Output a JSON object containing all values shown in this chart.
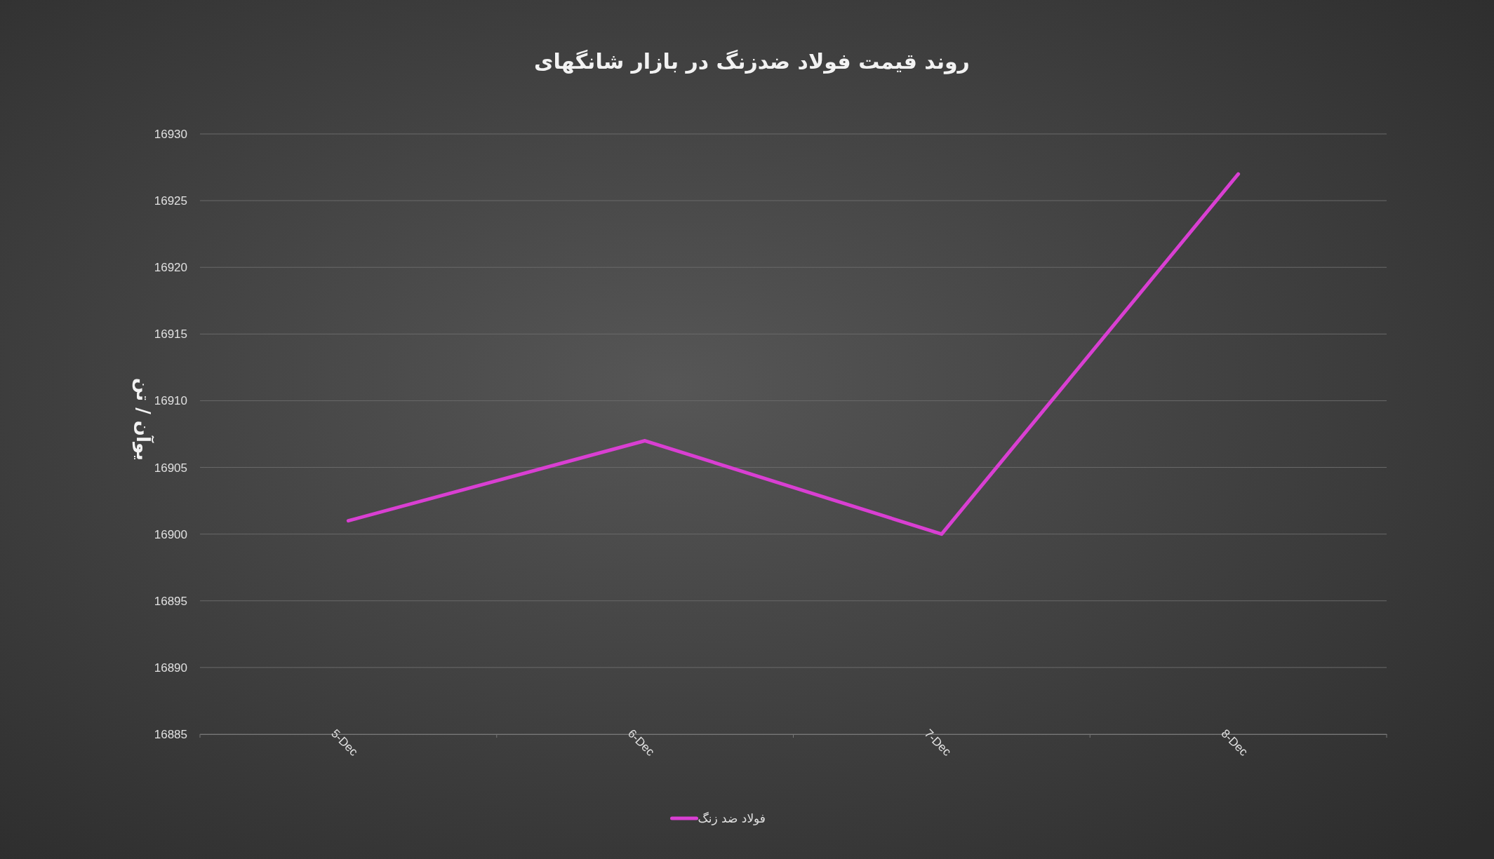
{
  "chart_data": {
    "type": "line",
    "title": "روند قیمت فولاد ضدزنگ در بازار شانگهای",
    "ylabel": "یوآن / تن",
    "categories": [
      "5-Dec",
      "6-Dec",
      "7-Dec",
      "8-Dec"
    ],
    "series": [
      {
        "name": "فولاد ضد زنگ",
        "color": "#d93fd2",
        "values": [
          16901,
          16907,
          16900,
          16927
        ]
      }
    ],
    "ylim": [
      16885,
      16930
    ],
    "yticks": [
      16885,
      16890,
      16895,
      16900,
      16905,
      16910,
      16915,
      16920,
      16925,
      16930
    ],
    "grid": "y",
    "legend": "bottom",
    "marker": "none",
    "line_style": "solid"
  }
}
